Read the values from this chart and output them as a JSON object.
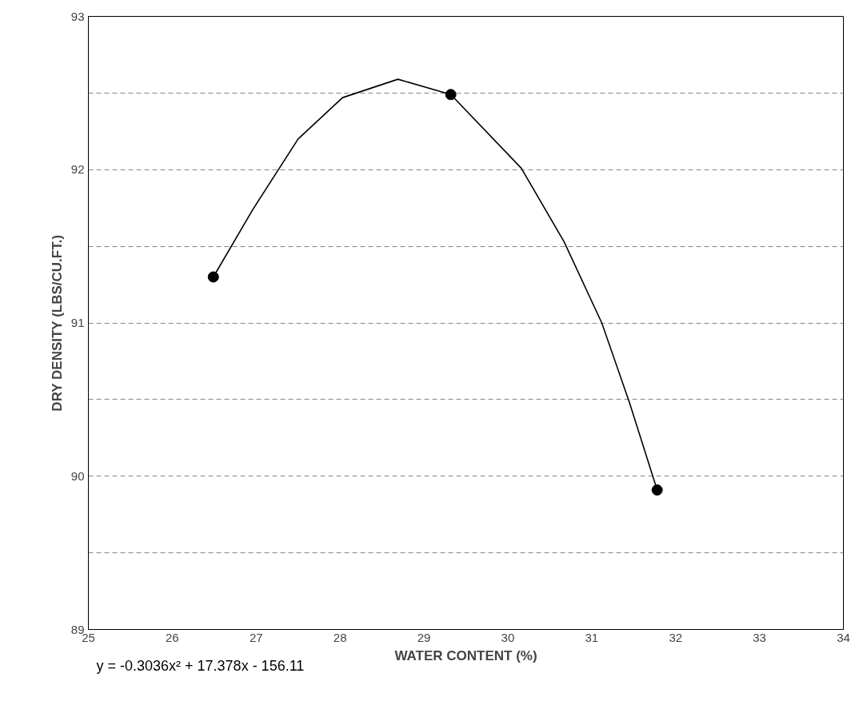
{
  "chart_data": {
    "type": "scatter",
    "xlabel": "WATER CONTENT (%)",
    "ylabel": "DRY DENSITY (LBS/CU.FT.)",
    "annotations": [
      "y = -0.3036x² + 17.378x - 156.11"
    ],
    "x": [
      26.49,
      29.32,
      31.78
    ],
    "series": [
      {
        "color": "#000000",
        "marker": "circle",
        "values": [
          91.3,
          92.49,
          89.91
        ]
      },
      {
        "type": "line",
        "color": "#000000",
        "marker": "none",
        "x": [
          26.49,
          26.96,
          27.5,
          28.03,
          28.69,
          29.32,
          30.16,
          30.67,
          31.12,
          31.45,
          31.78
        ],
        "values": [
          91.3,
          91.74,
          92.2,
          92.47,
          92.59,
          92.49,
          92.01,
          91.53,
          91.0,
          90.48,
          89.91
        ]
      }
    ],
    "xlim": [
      25,
      34
    ],
    "ylim": [
      89,
      93
    ],
    "xticks": [
      25,
      26,
      27,
      28,
      29,
      30,
      31,
      32,
      33,
      34
    ],
    "yticks": [
      89,
      {
        "value": 89.5,
        "label": null
      },
      90,
      {
        "value": 90.5,
        "label": null
      },
      91,
      {
        "value": 91.5,
        "label": null
      },
      92,
      {
        "value": 92.5,
        "label": null
      },
      93
    ],
    "grid": "y"
  }
}
